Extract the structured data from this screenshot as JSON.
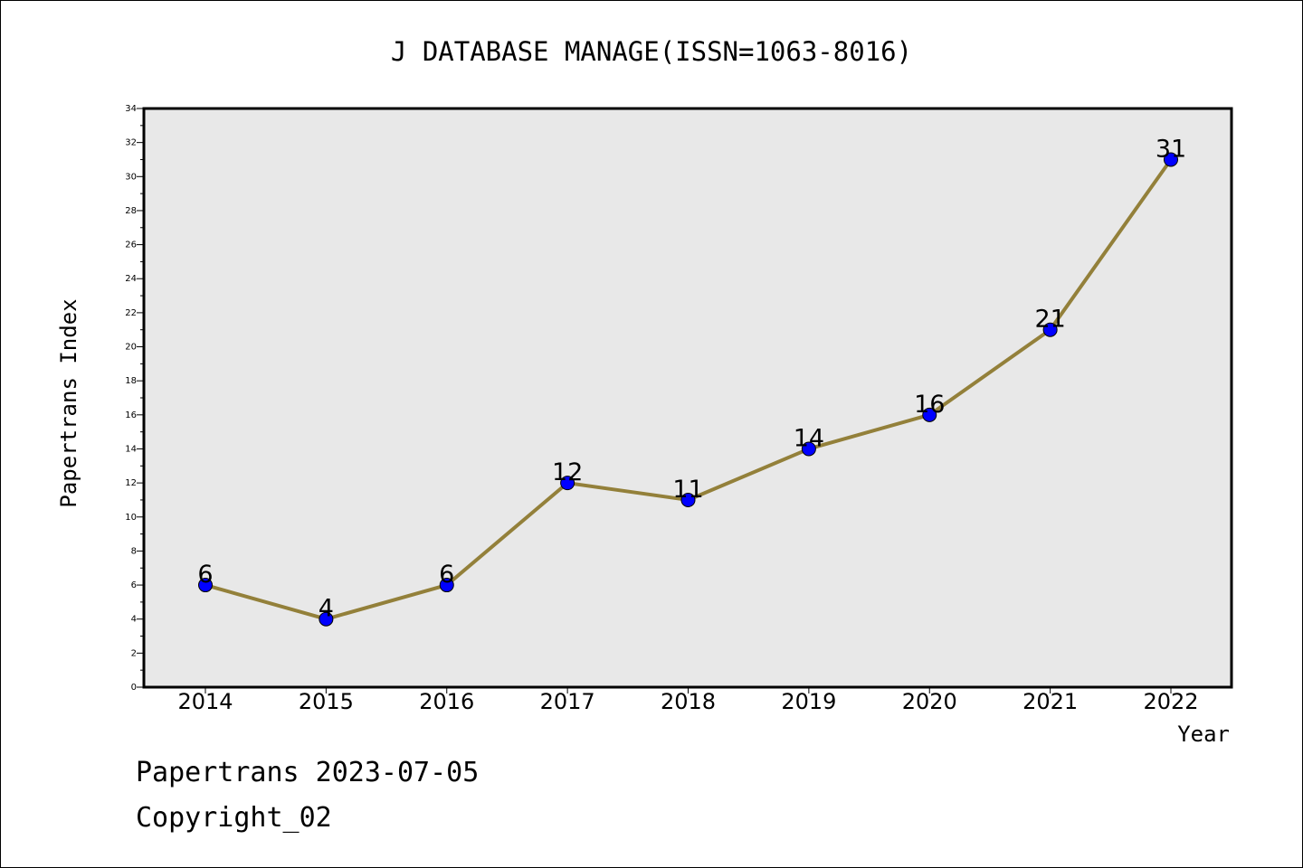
{
  "chart_data": {
    "type": "line",
    "title": "J DATABASE MANAGE(ISSN=1063-8016)",
    "xlabel": "Year",
    "ylabel": "Papertrans Index",
    "x": [
      "2014",
      "2015",
      "2016",
      "2017",
      "2018",
      "2019",
      "2020",
      "2021",
      "2022"
    ],
    "series": [
      {
        "values": [
          6,
          4,
          6,
          12,
          11,
          14,
          16,
          21,
          31
        ]
      }
    ],
    "data_labels": [
      "6",
      "4",
      "6",
      "12",
      "11",
      "14",
      "16",
      "21",
      "31"
    ],
    "ylim": [
      0,
      34
    ],
    "yticks": [
      "0",
      "2",
      "4",
      "6",
      "8",
      "10",
      "12",
      "14",
      "16",
      "18",
      "20",
      "22",
      "24",
      "26",
      "28",
      "30",
      "32",
      "34"
    ],
    "grid": false,
    "legend": "none",
    "colors": {
      "line": "#93803a",
      "marker": "#0000ff",
      "plot_bg": "#e8e8e8"
    }
  },
  "footer": {
    "date_line": "Papertrans 2023-07-05",
    "copyright": "Copyright_02"
  }
}
